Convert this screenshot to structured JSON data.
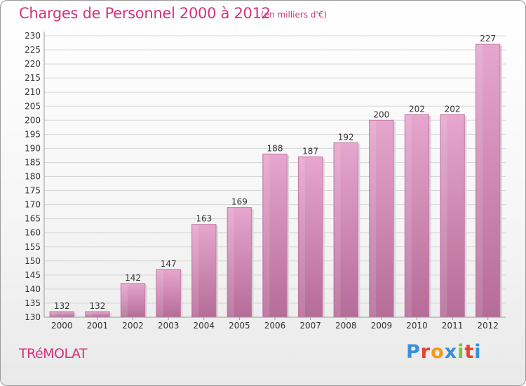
{
  "header": {
    "title": "Charges de Personnel 2000 à 2012",
    "subtitle": "(en milliers d'€)"
  },
  "footer": {
    "place": "TRéMOLAT",
    "brand": "Proxiti",
    "brand_colors": [
      "#3a8fd8",
      "#e8412e",
      "#f29a1c",
      "#3a8fd8",
      "#7cc243",
      "#e8412e",
      "#3a8fd8"
    ]
  },
  "colors": {
    "accent": "#d2337f",
    "bar_top": "#e6a6cd",
    "bar_bottom": "#b56c98",
    "bar_side": "#c47aa7",
    "axis": "#9a9a9a",
    "grid": "#d6d6d6"
  },
  "chart_data": {
    "type": "bar",
    "categories": [
      "2000",
      "2001",
      "2002",
      "2003",
      "2004",
      "2005",
      "2006",
      "2007",
      "2008",
      "2009",
      "2010",
      "2011",
      "2012"
    ],
    "values": [
      132,
      132,
      142,
      147,
      163,
      169,
      188,
      187,
      192,
      200,
      202,
      202,
      227
    ],
    "data_labels": [
      "132",
      "132",
      "142",
      "147",
      "163",
      "169",
      "188",
      "187",
      "192",
      "200",
      "202",
      "202",
      "227"
    ],
    "ylim": [
      130,
      230
    ],
    "ytick_step": 5,
    "yticks": [
      "130",
      "135",
      "140",
      "145",
      "150",
      "155",
      "160",
      "165",
      "170",
      "175",
      "180",
      "185",
      "190",
      "195",
      "200",
      "205",
      "210",
      "215",
      "220",
      "225",
      "230"
    ],
    "grid": true,
    "xlabel": "",
    "ylabel": ""
  }
}
